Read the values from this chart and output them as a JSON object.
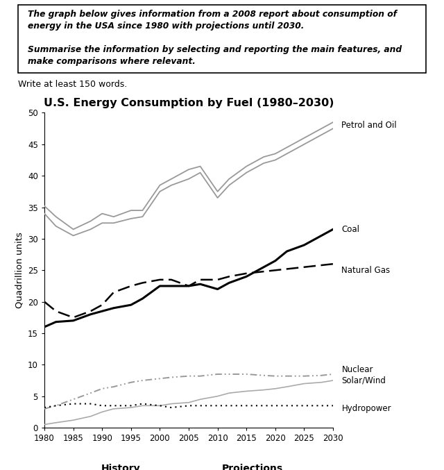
{
  "title": "U.S. Energy Consumption by Fuel (1980–2030)",
  "ylabel": "Quadrillion units",
  "xlabel_history": "History",
  "xlabel_projections": "Projections",
  "years": [
    1980,
    1982,
    1985,
    1988,
    1990,
    1992,
    1995,
    1997,
    2000,
    2002,
    2005,
    2007,
    2010,
    2012,
    2015,
    2018,
    2020,
    2022,
    2025,
    2028,
    2030
  ],
  "petrol_and_oil_hi": [
    35.2,
    33.5,
    31.5,
    32.8,
    34.0,
    33.5,
    34.5,
    34.5,
    38.5,
    39.5,
    41.0,
    41.5,
    37.5,
    39.5,
    41.5,
    43.0,
    43.5,
    44.5,
    46.0,
    47.5,
    48.5
  ],
  "petrol_and_oil_lo": [
    34.0,
    32.0,
    30.5,
    31.5,
    32.5,
    32.5,
    33.2,
    33.5,
    37.5,
    38.5,
    39.5,
    40.5,
    36.5,
    38.5,
    40.5,
    42.0,
    42.5,
    43.5,
    45.0,
    46.5,
    47.5
  ],
  "coal": [
    16.0,
    16.8,
    17.0,
    18.0,
    18.5,
    19.0,
    19.5,
    20.5,
    22.5,
    22.5,
    22.5,
    22.8,
    22.0,
    23.0,
    24.0,
    25.5,
    26.5,
    28.0,
    29.0,
    30.5,
    31.5
  ],
  "natural_gas": [
    20.0,
    18.5,
    17.5,
    18.5,
    19.5,
    21.5,
    22.5,
    23.0,
    23.5,
    23.5,
    22.5,
    23.5,
    23.5,
    24.0,
    24.5,
    24.8,
    25.0,
    25.2,
    25.5,
    25.8,
    26.0
  ],
  "nuclear": [
    3.0,
    3.5,
    4.5,
    5.5,
    6.2,
    6.5,
    7.2,
    7.5,
    7.8,
    8.0,
    8.2,
    8.2,
    8.5,
    8.5,
    8.5,
    8.3,
    8.2,
    8.2,
    8.2,
    8.3,
    8.5
  ],
  "solar_wind": [
    0.5,
    0.8,
    1.2,
    1.8,
    2.5,
    3.0,
    3.2,
    3.5,
    3.5,
    3.8,
    4.0,
    4.5,
    5.0,
    5.5,
    5.8,
    6.0,
    6.2,
    6.5,
    7.0,
    7.2,
    7.5
  ],
  "hydropower": [
    3.2,
    3.5,
    3.8,
    3.8,
    3.5,
    3.5,
    3.5,
    3.8,
    3.5,
    3.2,
    3.5,
    3.5,
    3.5,
    3.5,
    3.5,
    3.5,
    3.5,
    3.5,
    3.5,
    3.5,
    3.5
  ],
  "ylim": [
    0,
    50
  ],
  "yticks": [
    0,
    5,
    10,
    15,
    20,
    25,
    30,
    35,
    40,
    45,
    50
  ],
  "xticks": [
    1980,
    1985,
    1990,
    1995,
    2000,
    2005,
    2010,
    2015,
    2020,
    2025,
    2030
  ]
}
